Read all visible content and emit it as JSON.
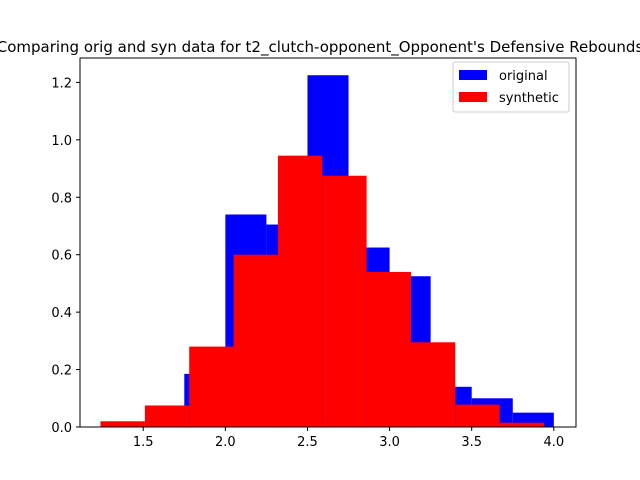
{
  "chart_data": {
    "type": "bar",
    "title": "Comparing orig and syn data for t2_clutch-opponent_Opponent's Defensive Rebounds",
    "xlabel": "",
    "ylabel": "",
    "xlim": [
      1.115,
      4.135
    ],
    "ylim": [
      0,
      1.285
    ],
    "x_ticks": [
      1.5,
      2.0,
      2.5,
      3.0,
      3.5,
      4.0
    ],
    "y_ticks": [
      0.0,
      0.2,
      0.4,
      0.6,
      0.8,
      1.0,
      1.2
    ],
    "x_tick_labels": [
      "1.5",
      "2.0",
      "2.5",
      "3.0",
      "3.5",
      "4.0"
    ],
    "y_tick_labels": [
      "0.0",
      "0.2",
      "0.4",
      "0.6",
      "0.8",
      "1.0",
      "1.2"
    ],
    "legend_position": "top-right",
    "grid": false,
    "series": [
      {
        "name": "original",
        "color": "#0000ff",
        "bin_edges": [
          1.75,
          2.0,
          2.25,
          2.5,
          2.75,
          3.0,
          3.25,
          3.5,
          3.75,
          4.0
        ],
        "values": [
          0.185,
          0.74,
          0.705,
          1.225,
          0.625,
          0.525,
          0.14,
          0.1,
          0.05
        ]
      },
      {
        "name": "synthetic",
        "color": "#ff0000",
        "bin_edges": [
          1.24,
          1.51,
          1.78,
          2.05,
          2.32,
          2.59,
          2.86,
          3.13,
          3.4,
          3.67,
          3.94
        ],
        "values": [
          0.02,
          0.075,
          0.28,
          0.6,
          0.945,
          0.875,
          0.54,
          0.295,
          0.078,
          0.015
        ]
      }
    ]
  }
}
